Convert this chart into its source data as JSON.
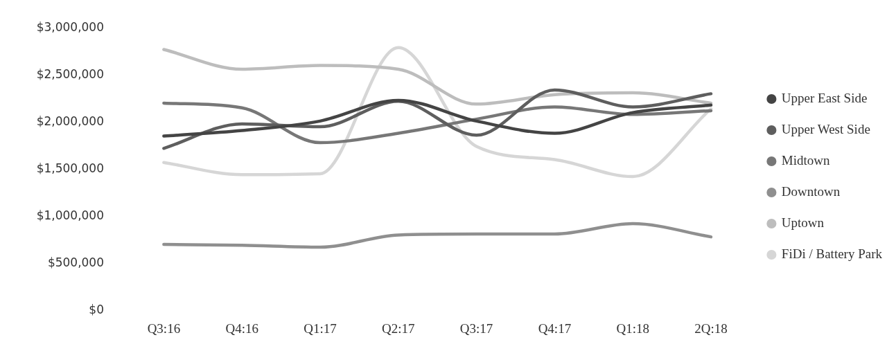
{
  "chart_data": {
    "type": "line",
    "categories": [
      "Q3:16",
      "Q4:16",
      "Q1:17",
      "Q2:17",
      "Q3:17",
      "Q4:17",
      "Q1:18",
      "2Q:18"
    ],
    "series": [
      {
        "name": "Upper East Side",
        "color": "#444444",
        "values": [
          1850000,
          1910000,
          2010000,
          2230000,
          2010000,
          1880000,
          2100000,
          2180000
        ]
      },
      {
        "name": "Upper West Side",
        "color": "#5e5e5e",
        "values": [
          1720000,
          1980000,
          1950000,
          2220000,
          1860000,
          2340000,
          2160000,
          2300000
        ]
      },
      {
        "name": "Midtown",
        "color": "#777777",
        "values": [
          2200000,
          2150000,
          1780000,
          1880000,
          2030000,
          2160000,
          2080000,
          2120000
        ]
      },
      {
        "name": "Downtown",
        "color": "#8f8f8f",
        "values": [
          700000,
          690000,
          670000,
          800000,
          810000,
          810000,
          920000,
          780000
        ]
      },
      {
        "name": "Uptown",
        "color": "#bdbdbd",
        "values": [
          2770000,
          2560000,
          2600000,
          2560000,
          2190000,
          2290000,
          2310000,
          2200000
        ]
      },
      {
        "name": "FiDi / Battery Park",
        "color": "#d6d6d6",
        "values": [
          1570000,
          1440000,
          1450000,
          2790000,
          1740000,
          1600000,
          1420000,
          2140000
        ]
      }
    ],
    "ylim": [
      0,
      3000000
    ],
    "yticks": [
      {
        "value": 0,
        "label": "$0"
      },
      {
        "value": 500000,
        "label": "$500,000"
      },
      {
        "value": 1000000,
        "label": "$1,000,000"
      },
      {
        "value": 1500000,
        "label": "$1,500,000"
      },
      {
        "value": 2000000,
        "label": "$2,000,000"
      },
      {
        "value": 2500000,
        "label": "$2,500,000"
      },
      {
        "value": 3000000,
        "label": "$3,000,000"
      }
    ],
    "grid": false,
    "legend": "right",
    "marker": "none",
    "line_style": "solid"
  }
}
